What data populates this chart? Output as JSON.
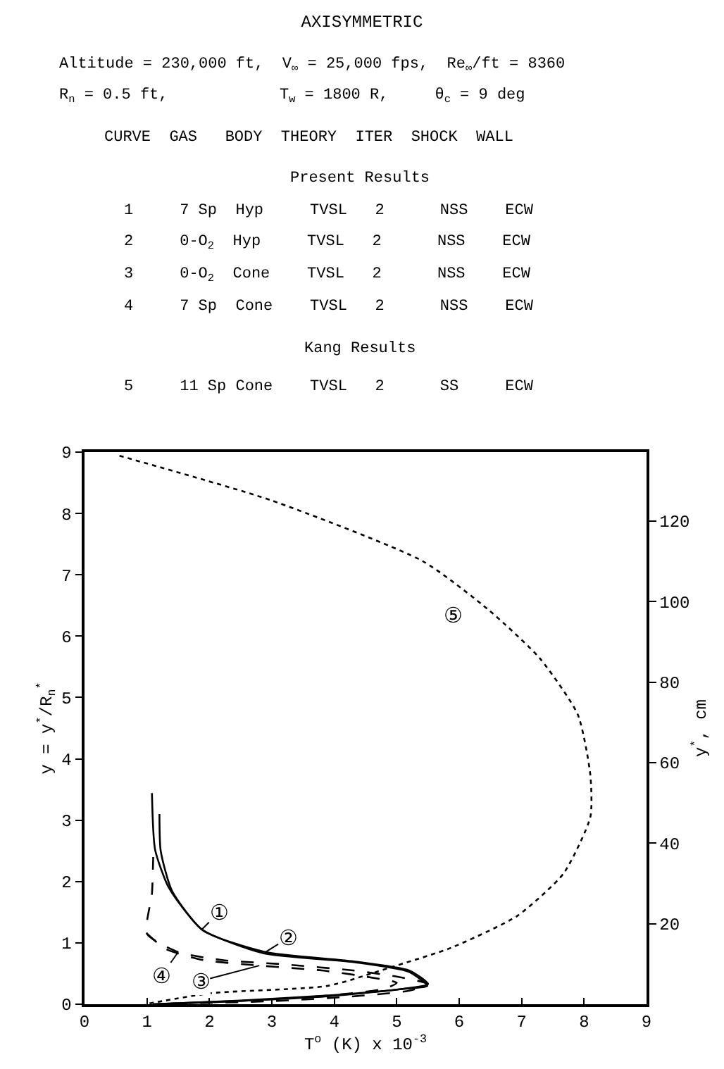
{
  "chart_data": {
    "type": "line",
    "title": "AXISYMMETRIC",
    "xlabel": "T$^{o}$ (K) x 10$^{-3}$",
    "ylabel": "y = y$^{*}$/R$_{n}$$^{*}$",
    "y2label": "y$^{*}$, cm",
    "xlim": [
      0,
      9
    ],
    "xticks": [
      0,
      1,
      2,
      3,
      4,
      5,
      6,
      7,
      8,
      9
    ],
    "ylim": [
      0,
      9
    ],
    "yticks": [
      0,
      1,
      2,
      3,
      4,
      5,
      6,
      7,
      8,
      9
    ],
    "y2lim": [
      0,
      137.16
    ],
    "y2ticks": [
      20,
      40,
      60,
      80,
      100,
      120
    ],
    "marker": "none",
    "series": [
      {
        "color": "#000000",
        "line_style": "solid",
        "x": [
          1.08,
          1.13,
          1.35,
          1.88,
          2.87,
          4.29,
          5.19,
          5.49,
          5.1,
          3.9,
          2.4,
          1.1
        ],
        "values": [
          3.44,
          2.52,
          1.9,
          1.22,
          0.83,
          0.69,
          0.53,
          0.3,
          0.25,
          0.13,
          0.05,
          0.0
        ]
      },
      {
        "color": "#000000",
        "line_style": "solid",
        "x": [
          1.2,
          1.22,
          1.4,
          1.9,
          2.9,
          4.3,
          5.2,
          5.5,
          5.1,
          4.0,
          2.5,
          1.1
        ],
        "values": [
          3.1,
          2.5,
          1.85,
          1.2,
          0.85,
          0.7,
          0.55,
          0.33,
          0.25,
          0.15,
          0.06,
          0.0
        ]
      },
      {
        "color": "#000000",
        "line_style": "dashed",
        "x": [
          1.0,
          1.3,
          1.9,
          2.8,
          3.8,
          4.5,
          5.0,
          4.8,
          4.0,
          3.0,
          2.0,
          1.1
        ],
        "values": [
          1.15,
          0.9,
          0.72,
          0.63,
          0.55,
          0.45,
          0.35,
          0.25,
          0.15,
          0.08,
          0.03,
          0.0
        ]
      },
      {
        "color": "#000000",
        "line_style": "dashed",
        "x": [
          1.1,
          1.08,
          1.0,
          1.5,
          2.2,
          3.2,
          4.3,
          5.0,
          5.5,
          5.2,
          4.2,
          3.0,
          1.5
        ],
        "values": [
          2.4,
          1.8,
          1.15,
          0.85,
          0.72,
          0.65,
          0.55,
          0.45,
          0.33,
          0.22,
          0.12,
          0.05,
          0.01
        ]
      },
      {
        "color": "#000000",
        "line_style": "dotted",
        "x": [
          0.56,
          3.0,
          5.42,
          6.48,
          7.29,
          7.9,
          8.1,
          8.1,
          7.67,
          6.93,
          5.87,
          4.9,
          3.9,
          2.03,
          0.97
        ],
        "values": [
          8.94,
          8.21,
          7.22,
          6.42,
          5.64,
          4.72,
          3.74,
          3.05,
          2.13,
          1.44,
          0.92,
          0.6,
          0.3,
          0.18,
          0.0
        ]
      }
    ],
    "annotations": [
      "Altitude = 230,000 ft,  V$_{∞}$ = 25,000 fps,  Re$_{∞}$/ft = 8360",
      "R$_{n}$ = 0.5 ft,            T$_{w}$ = 1800 R,     θ$_{c}$ = 9 deg",
      "CURVE  GAS   BODY  THEORY  ITER  SHOCK  WALL",
      "Present Results",
      "1     7 Sp  Hyp     TVSL   2      NSS    ECW",
      "2     0-O$_{2}$  Hyp     TVSL   2      NSS    ECW",
      "3     0-O$_{2}$  Cone    TVSL   2      NSS    ECW",
      "4     7 Sp  Cone    TVSL   2      NSS    ECW",
      "Kang Results",
      "5     11 Sp Cone    TVSL   2      SS     ECW",
      {
        "text": "①",
        "x": 1.88,
        "y": 1.22
      },
      {
        "text": "②",
        "x": 2.9,
        "y": 0.85
      },
      {
        "text": "③",
        "x": 2.8,
        "y": 0.63
      },
      {
        "text": "④",
        "x": 1.5,
        "y": 0.85
      },
      {
        "text": "⑤",
        "x": 6.48,
        "y": 6.42
      }
    ]
  }
}
